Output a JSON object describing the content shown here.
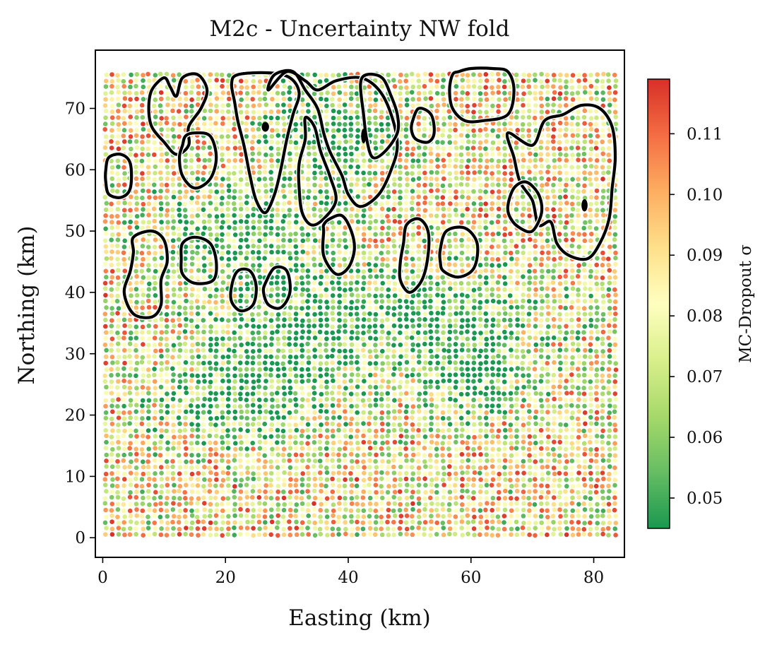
{
  "chart_data": {
    "type": "scatter",
    "title": "M2c - Uncertainty NW fold",
    "xlabel": "Easting (km)",
    "ylabel": "Northing (km)",
    "xlim": [
      -1.2,
      85
    ],
    "ylim": [
      -3.2,
      79.5
    ],
    "xticks": [
      0,
      20,
      40,
      60,
      80
    ],
    "yticks": [
      0,
      10,
      20,
      30,
      40,
      50,
      60,
      70
    ],
    "grid": false,
    "scatter_grid": {
      "x_start": 0.5,
      "x_end": 83.5,
      "x_step": 1.0,
      "y_start": 0.5,
      "y_end": 75.5,
      "y_step": 1.0
    },
    "colorbar": {
      "label": "MC-Dropout σ",
      "cmap": "RdYlGn_r",
      "range": [
        0.045,
        0.119
      ],
      "ticks": [
        0.05,
        0.06,
        0.07,
        0.08,
        0.09,
        0.1,
        0.11
      ],
      "tick_labels": [
        "0.05",
        "0.06",
        "0.07",
        "0.08",
        "0.09",
        "0.10",
        "0.11"
      ],
      "colors": [
        "#1a9850",
        "#66bd63",
        "#a6d96a",
        "#d9ef8b",
        "#ffffbf",
        "#fee08b",
        "#fdae61",
        "#f46d43",
        "#d73027"
      ]
    },
    "low_sigma_zones": [
      {
        "x": 22,
        "y": 50,
        "rx": 12,
        "ry": 7
      },
      {
        "x": 30,
        "y": 33,
        "rx": 13,
        "ry": 10
      },
      {
        "x": 22,
        "y": 22,
        "rx": 12,
        "ry": 6
      },
      {
        "x": 55,
        "y": 36,
        "rx": 16,
        "ry": 8
      },
      {
        "x": 37,
        "y": 65,
        "rx": 9,
        "ry": 9
      },
      {
        "x": 60,
        "y": 26,
        "rx": 8,
        "ry": 6
      }
    ],
    "contours": [
      {
        "name": "contour-1",
        "points": [
          [
            10,
            75
          ],
          [
            8,
            73
          ],
          [
            7.5,
            70
          ],
          [
            8,
            67
          ],
          [
            10,
            64.5
          ],
          [
            12,
            62.5
          ],
          [
            14,
            64
          ],
          [
            14,
            67
          ],
          [
            16,
            70
          ],
          [
            17,
            73
          ],
          [
            15.5,
            75.5
          ],
          [
            13,
            75
          ],
          [
            12,
            72
          ],
          [
            11,
            73.5
          ]
        ]
      },
      {
        "name": "contour-2",
        "points": [
          [
            13,
            64
          ],
          [
            12.5,
            62
          ],
          [
            13,
            59
          ],
          [
            15,
            57
          ],
          [
            17.5,
            58.5
          ],
          [
            18.5,
            62
          ],
          [
            17.5,
            65.5
          ],
          [
            15,
            66
          ],
          [
            13.5,
            65.5
          ]
        ]
      },
      {
        "name": "contour-3",
        "points": [
          [
            0.5,
            60
          ],
          [
            1,
            62
          ],
          [
            3,
            62.5
          ],
          [
            4.5,
            61
          ],
          [
            4.5,
            57
          ],
          [
            3,
            55.5
          ],
          [
            1,
            56
          ],
          [
            0.5,
            58
          ]
        ]
      },
      {
        "name": "contour-4",
        "points": [
          [
            21,
            74
          ],
          [
            22,
            75.5
          ],
          [
            27,
            75.8
          ],
          [
            30.5,
            75
          ],
          [
            32,
            72.5
          ],
          [
            31,
            69
          ],
          [
            30,
            65
          ],
          [
            29,
            60
          ],
          [
            28,
            56
          ],
          [
            26.5,
            53
          ],
          [
            25,
            55
          ],
          [
            24,
            59
          ],
          [
            23,
            64
          ],
          [
            22,
            68
          ],
          [
            21.5,
            71
          ]
        ]
      },
      {
        "name": "contour-5",
        "points": [
          [
            27,
            73
          ],
          [
            28,
            75.5
          ],
          [
            31,
            76
          ],
          [
            33,
            73
          ],
          [
            35,
            70
          ],
          [
            36,
            66
          ],
          [
            37,
            63
          ],
          [
            39,
            59
          ],
          [
            40,
            56
          ],
          [
            42,
            54
          ],
          [
            45,
            56
          ],
          [
            47,
            60
          ],
          [
            48,
            64
          ],
          [
            47,
            69
          ],
          [
            45,
            73
          ],
          [
            42,
            75
          ],
          [
            38,
            74.5
          ],
          [
            35,
            73
          ],
          [
            33,
            74.5
          ],
          [
            30,
            76
          ]
        ]
      },
      {
        "name": "contour-6",
        "points": [
          [
            32,
            61
          ],
          [
            33,
            65
          ],
          [
            33,
            68.5
          ],
          [
            34.5,
            67
          ],
          [
            35.5,
            63
          ],
          [
            37,
            59
          ],
          [
            38,
            55
          ],
          [
            36,
            52
          ],
          [
            34,
            51
          ],
          [
            32.5,
            53
          ],
          [
            32,
            57
          ]
        ]
      },
      {
        "name": "contour-7",
        "points": [
          [
            36,
            50
          ],
          [
            36,
            46
          ],
          [
            38,
            43
          ],
          [
            40,
            44
          ],
          [
            41,
            47
          ],
          [
            40.5,
            50
          ],
          [
            39,
            52.5
          ],
          [
            37,
            52
          ],
          [
            36,
            51
          ]
        ]
      },
      {
        "name": "contour-8",
        "points": [
          [
            42,
            74
          ],
          [
            43,
            75.5
          ],
          [
            45.5,
            75
          ],
          [
            47,
            72
          ],
          [
            48,
            69
          ],
          [
            48,
            66
          ],
          [
            46,
            63
          ],
          [
            44,
            62
          ],
          [
            43,
            65
          ],
          [
            42.5,
            69
          ]
        ]
      },
      {
        "name": "contour-9",
        "points": [
          [
            50.5,
            68
          ],
          [
            51.5,
            70
          ],
          [
            53.5,
            69
          ],
          [
            54,
            66
          ],
          [
            53,
            64.5
          ],
          [
            51,
            65
          ],
          [
            50.3,
            66.5
          ]
        ]
      },
      {
        "name": "contour-10",
        "points": [
          [
            58,
            76
          ],
          [
            60,
            76.5
          ],
          [
            63.5,
            76.5
          ],
          [
            66,
            76
          ],
          [
            67,
            73
          ],
          [
            66,
            69
          ],
          [
            62,
            68
          ],
          [
            59,
            68
          ],
          [
            57,
            70
          ],
          [
            56.5,
            73
          ],
          [
            57,
            75.5
          ]
        ]
      },
      {
        "name": "contour-11",
        "points": [
          [
            66,
            66
          ],
          [
            70,
            64
          ],
          [
            72,
            68
          ],
          [
            75,
            69
          ],
          [
            78,
            70.5
          ],
          [
            81,
            70
          ],
          [
            83,
            67
          ],
          [
            83.5,
            62
          ],
          [
            83,
            57
          ],
          [
            82.5,
            52
          ],
          [
            81,
            48
          ],
          [
            79,
            45.5
          ],
          [
            76,
            46
          ],
          [
            74,
            48
          ],
          [
            73,
            51.5
          ],
          [
            71,
            51
          ],
          [
            70,
            55
          ],
          [
            68,
            58
          ],
          [
            67,
            62
          ]
        ]
      },
      {
        "name": "contour-12",
        "points": [
          [
            66,
            54
          ],
          [
            67,
            57
          ],
          [
            69,
            58
          ],
          [
            71,
            56
          ],
          [
            71.5,
            53
          ],
          [
            70,
            50
          ],
          [
            68,
            50.5
          ],
          [
            66.5,
            52
          ]
        ]
      },
      {
        "name": "contour-13",
        "points": [
          [
            49,
            48
          ],
          [
            49.5,
            51
          ],
          [
            51.5,
            52
          ],
          [
            53,
            50
          ],
          [
            53,
            46
          ],
          [
            52,
            42
          ],
          [
            50,
            40
          ],
          [
            48.5,
            42
          ],
          [
            48.5,
            45
          ]
        ]
      },
      {
        "name": "contour-14",
        "points": [
          [
            55,
            47
          ],
          [
            56,
            50
          ],
          [
            59,
            50.5
          ],
          [
            61,
            48
          ],
          [
            60.5,
            44
          ],
          [
            58,
            42.5
          ],
          [
            55.5,
            43.5
          ],
          [
            55,
            45
          ]
        ]
      },
      {
        "name": "contour-15",
        "points": [
          [
            5,
            49
          ],
          [
            8,
            50
          ],
          [
            10,
            48.5
          ],
          [
            10.5,
            45
          ],
          [
            9.5,
            42
          ],
          [
            9.5,
            38
          ],
          [
            8,
            36
          ],
          [
            5,
            36.5
          ],
          [
            3.5,
            40
          ],
          [
            4.5,
            43.5
          ],
          [
            5,
            46.5
          ]
        ]
      },
      {
        "name": "contour-16",
        "points": [
          [
            13,
            48
          ],
          [
            15,
            49
          ],
          [
            17.5,
            48
          ],
          [
            18.5,
            45
          ],
          [
            18,
            42
          ],
          [
            15,
            41.5
          ],
          [
            13,
            43
          ],
          [
            12.8,
            45.5
          ]
        ]
      },
      {
        "name": "contour-17",
        "points": [
          [
            21,
            41
          ],
          [
            22,
            43.5
          ],
          [
            24,
            43.5
          ],
          [
            25,
            41
          ],
          [
            24.5,
            38
          ],
          [
            22.5,
            37
          ],
          [
            21,
            38.5
          ]
        ]
      },
      {
        "name": "contour-18",
        "points": [
          [
            26.5,
            41.5
          ],
          [
            28,
            44
          ],
          [
            30,
            43.5
          ],
          [
            30.5,
            40
          ],
          [
            29,
            37.5
          ],
          [
            27,
            38
          ],
          [
            26.2,
            40
          ]
        ]
      }
    ],
    "markers": [
      {
        "x": 26.5,
        "y": 67,
        "rx": 0.6,
        "ry": 0.8
      },
      {
        "x": 42.5,
        "y": 65.5,
        "rx": 0.4,
        "ry": 1.2
      },
      {
        "x": 78.5,
        "y": 54.2,
        "rx": 0.5,
        "ry": 1.0
      }
    ]
  }
}
